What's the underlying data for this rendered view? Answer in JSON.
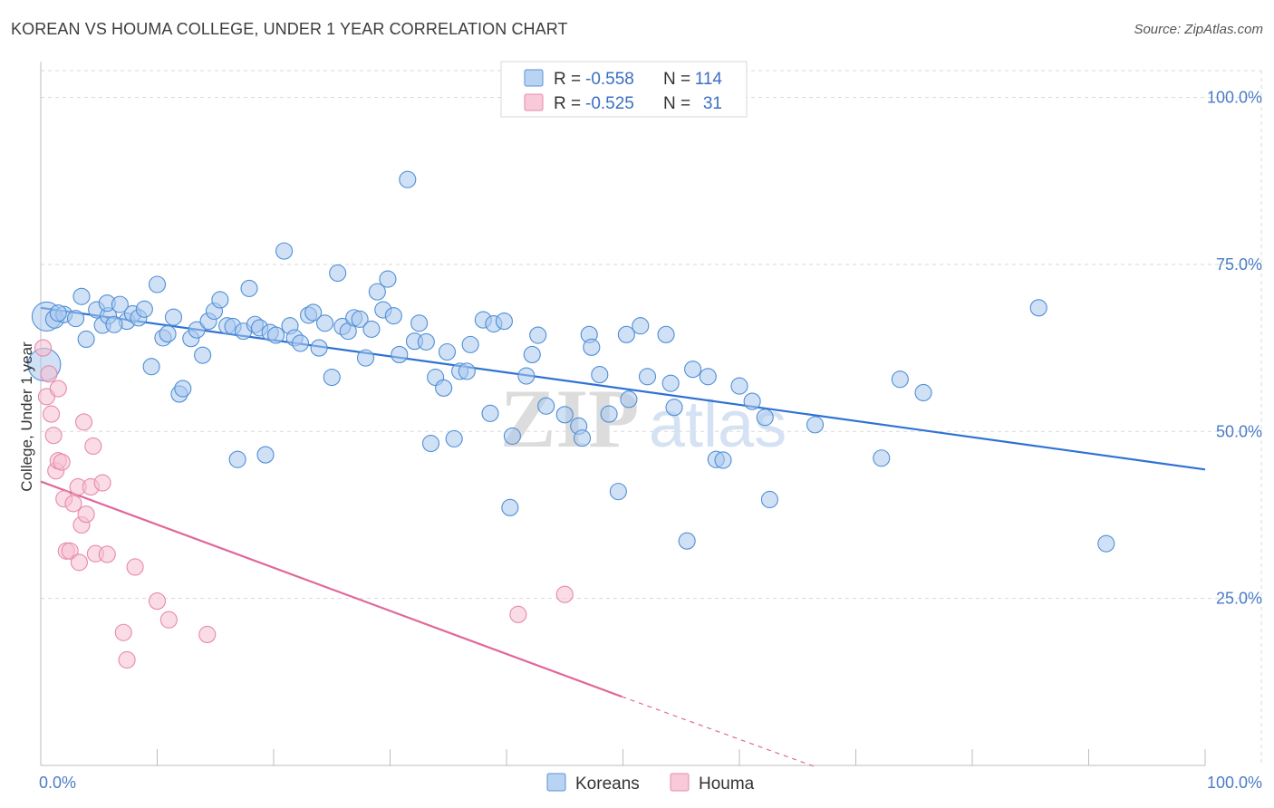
{
  "title": "KOREAN VS HOUMA COLLEGE, UNDER 1 YEAR CORRELATION CHART",
  "source": "Source: ZipAtlas.com",
  "watermark": {
    "zip": "ZIP",
    "atlas": "atlas"
  },
  "colors": {
    "korean_fill": "#a9c8ee",
    "korean_stroke": "#4f8fd6",
    "korean_line": "#2f72d2",
    "houma_fill": "#f6bfd1",
    "houma_stroke": "#e889a9",
    "houma_line": "#e0689a",
    "grid": "#d9d9d9",
    "tick_label": "#4a7cc7"
  },
  "legend": {
    "rows": [
      {
        "r_label": "R = ",
        "r_value": "-0.558",
        "n_label": "N = ",
        "n_value": "114"
      },
      {
        "r_label": "R = ",
        "r_value": "-0.525",
        "n_label": "N = ",
        "n_value": "31"
      }
    ]
  },
  "bottom_legend": [
    "Koreans",
    "Houma"
  ],
  "chart_data": {
    "type": "scatter",
    "title": "KOREAN VS HOUMA COLLEGE, UNDER 1 YEAR CORRELATION CHART",
    "xlabel": "",
    "ylabel": "College, Under 1 year",
    "xlim": [
      0,
      100
    ],
    "ylim": [
      0,
      104
    ],
    "x_tick_labels": [
      "0.0%",
      "100.0%"
    ],
    "y_ticks": [
      25,
      50,
      75,
      100
    ],
    "y_tick_labels": [
      "25.0%",
      "50.0%",
      "75.0%",
      "100.0%"
    ],
    "grid": true,
    "legend_position": "top-center",
    "series": [
      {
        "name": "Koreans",
        "r": -0.558,
        "n": 114,
        "trend": {
          "x": [
            0,
            100
          ],
          "y": [
            68.5,
            44.3
          ]
        },
        "points": [
          [
            0.5,
            67.2,
            16
          ],
          [
            1.2,
            66.8,
            10
          ],
          [
            0.3,
            60.0,
            18
          ],
          [
            2.0,
            67.5,
            9
          ],
          [
            3.5,
            70.2,
            9
          ],
          [
            3.9,
            63.8,
            9
          ],
          [
            4.8,
            68.2,
            9
          ],
          [
            5.3,
            65.9,
            9
          ],
          [
            5.8,
            67.3,
            9
          ],
          [
            5.7,
            69.2,
            9
          ],
          [
            6.8,
            69.0,
            9
          ],
          [
            7.4,
            66.5,
            9
          ],
          [
            7.9,
            67.6,
            9
          ],
          [
            8.4,
            67.0,
            9
          ],
          [
            8.9,
            68.3,
            9
          ],
          [
            9.5,
            59.7,
            9
          ],
          [
            10.0,
            72.0,
            9
          ],
          [
            10.5,
            64.0,
            9
          ],
          [
            10.9,
            64.6,
            9
          ],
          [
            11.4,
            67.1,
            9
          ],
          [
            11.9,
            55.6,
            9
          ],
          [
            12.2,
            56.4,
            9
          ],
          [
            12.9,
            63.9,
            9
          ],
          [
            13.4,
            65.2,
            9
          ],
          [
            13.9,
            61.4,
            9
          ],
          [
            14.4,
            66.5,
            9
          ],
          [
            14.9,
            68.0,
            9
          ],
          [
            15.4,
            69.7,
            9
          ],
          [
            16.0,
            65.8,
            9
          ],
          [
            16.5,
            65.7,
            9
          ],
          [
            16.9,
            45.8,
            9
          ],
          [
            17.4,
            65.0,
            9
          ],
          [
            17.9,
            71.4,
            9
          ],
          [
            18.4,
            66.0,
            9
          ],
          [
            18.8,
            65.5,
            9
          ],
          [
            19.3,
            46.5,
            9
          ],
          [
            19.7,
            64.8,
            9
          ],
          [
            20.2,
            64.4,
            9
          ],
          [
            20.9,
            77.0,
            9
          ],
          [
            21.4,
            65.8,
            9
          ],
          [
            21.8,
            64.0,
            9
          ],
          [
            22.3,
            63.2,
            9
          ],
          [
            23.0,
            67.4,
            9
          ],
          [
            23.4,
            67.8,
            9
          ],
          [
            23.9,
            62.5,
            9
          ],
          [
            24.4,
            66.2,
            9
          ],
          [
            25.0,
            58.1,
            9
          ],
          [
            25.5,
            73.7,
            9
          ],
          [
            25.9,
            65.7,
            9
          ],
          [
            26.4,
            65.0,
            9
          ],
          [
            26.9,
            67.0,
            9
          ],
          [
            27.4,
            66.8,
            9
          ],
          [
            27.9,
            61.0,
            9
          ],
          [
            28.4,
            65.3,
            9
          ],
          [
            28.9,
            70.9,
            9
          ],
          [
            29.4,
            68.2,
            9
          ],
          [
            29.8,
            72.8,
            9
          ],
          [
            30.3,
            67.3,
            9
          ],
          [
            30.8,
            61.5,
            9
          ],
          [
            31.5,
            87.7,
            9
          ],
          [
            32.1,
            63.5,
            9
          ],
          [
            32.5,
            66.2,
            9
          ],
          [
            33.1,
            63.4,
            9
          ],
          [
            33.5,
            48.2,
            9
          ],
          [
            33.9,
            58.1,
            9
          ],
          [
            34.6,
            56.5,
            9
          ],
          [
            34.9,
            61.9,
            9
          ],
          [
            35.5,
            48.9,
            9
          ],
          [
            36.0,
            59.0,
            9
          ],
          [
            36.6,
            59.0,
            9
          ],
          [
            36.9,
            63.0,
            9
          ],
          [
            38.0,
            66.7,
            9
          ],
          [
            38.6,
            52.7,
            9
          ],
          [
            38.9,
            66.1,
            9
          ],
          [
            39.8,
            66.5,
            9
          ],
          [
            40.3,
            38.6,
            9
          ],
          [
            40.5,
            49.3,
            9
          ],
          [
            41.7,
            58.3,
            9
          ],
          [
            42.2,
            61.5,
            9
          ],
          [
            42.7,
            64.4,
            9
          ],
          [
            43.4,
            53.8,
            9
          ],
          [
            45.0,
            52.5,
            9
          ],
          [
            46.2,
            50.8,
            9
          ],
          [
            46.5,
            49.0,
            9
          ],
          [
            47.1,
            64.5,
            9
          ],
          [
            47.3,
            62.6,
            9
          ],
          [
            48.0,
            58.5,
            9
          ],
          [
            48.8,
            52.6,
            9
          ],
          [
            49.6,
            41.0,
            9
          ],
          [
            50.3,
            64.5,
            9
          ],
          [
            50.5,
            54.8,
            9
          ],
          [
            51.5,
            65.8,
            9
          ],
          [
            52.1,
            58.2,
            9
          ],
          [
            53.7,
            64.5,
            9
          ],
          [
            54.1,
            57.2,
            9
          ],
          [
            54.4,
            53.6,
            9
          ],
          [
            55.5,
            33.6,
            9
          ],
          [
            56.0,
            59.3,
            9
          ],
          [
            57.3,
            58.2,
            9
          ],
          [
            58.0,
            45.8,
            9
          ],
          [
            58.6,
            45.7,
            9
          ],
          [
            60.0,
            56.8,
            9
          ],
          [
            61.1,
            54.5,
            9
          ],
          [
            62.2,
            52.1,
            9
          ],
          [
            62.6,
            39.8,
            9
          ],
          [
            66.5,
            51.0,
            9
          ],
          [
            72.2,
            46.0,
            9
          ],
          [
            73.8,
            57.8,
            9
          ],
          [
            75.8,
            55.8,
            9
          ],
          [
            85.7,
            68.5,
            9
          ],
          [
            91.5,
            33.2,
            9
          ],
          [
            1.5,
            67.7,
            9
          ],
          [
            3.0,
            66.9,
            9
          ],
          [
            6.3,
            66.0,
            9
          ]
        ]
      },
      {
        "name": "Houma",
        "r": -0.525,
        "n": 31,
        "trend": {
          "x": [
            0,
            49.9
          ],
          "y": [
            42.5,
            10.3
          ]
        },
        "trend_dashed": {
          "x": [
            49.9,
            66.5
          ],
          "y": [
            10.3,
            -0.2
          ]
        },
        "points": [
          [
            0.2,
            62.5,
            9
          ],
          [
            0.5,
            55.2,
            9
          ],
          [
            0.7,
            58.6,
            9
          ],
          [
            0.9,
            52.6,
            9
          ],
          [
            1.1,
            49.4,
            9
          ],
          [
            1.3,
            44.1,
            9
          ],
          [
            1.5,
            45.6,
            9
          ],
          [
            1.5,
            56.4,
            9
          ],
          [
            1.8,
            45.4,
            9
          ],
          [
            2.0,
            39.9,
            9
          ],
          [
            2.2,
            32.1,
            9
          ],
          [
            2.5,
            32.1,
            9
          ],
          [
            2.8,
            39.2,
            9
          ],
          [
            3.2,
            41.7,
            9
          ],
          [
            3.3,
            30.4,
            9
          ],
          [
            3.5,
            36.0,
            9
          ],
          [
            3.7,
            51.4,
            9
          ],
          [
            3.9,
            37.6,
            9
          ],
          [
            4.3,
            41.7,
            9
          ],
          [
            4.5,
            47.8,
            9
          ],
          [
            4.7,
            31.7,
            9
          ],
          [
            5.3,
            42.3,
            9
          ],
          [
            5.7,
            31.6,
            9
          ],
          [
            7.1,
            19.9,
            9
          ],
          [
            7.4,
            15.8,
            9
          ],
          [
            8.1,
            29.7,
            9
          ],
          [
            10.0,
            24.6,
            9
          ],
          [
            11.0,
            21.8,
            9
          ],
          [
            14.3,
            19.6,
            9
          ],
          [
            41.0,
            22.6,
            9
          ],
          [
            45.0,
            25.6,
            9
          ]
        ]
      }
    ]
  }
}
